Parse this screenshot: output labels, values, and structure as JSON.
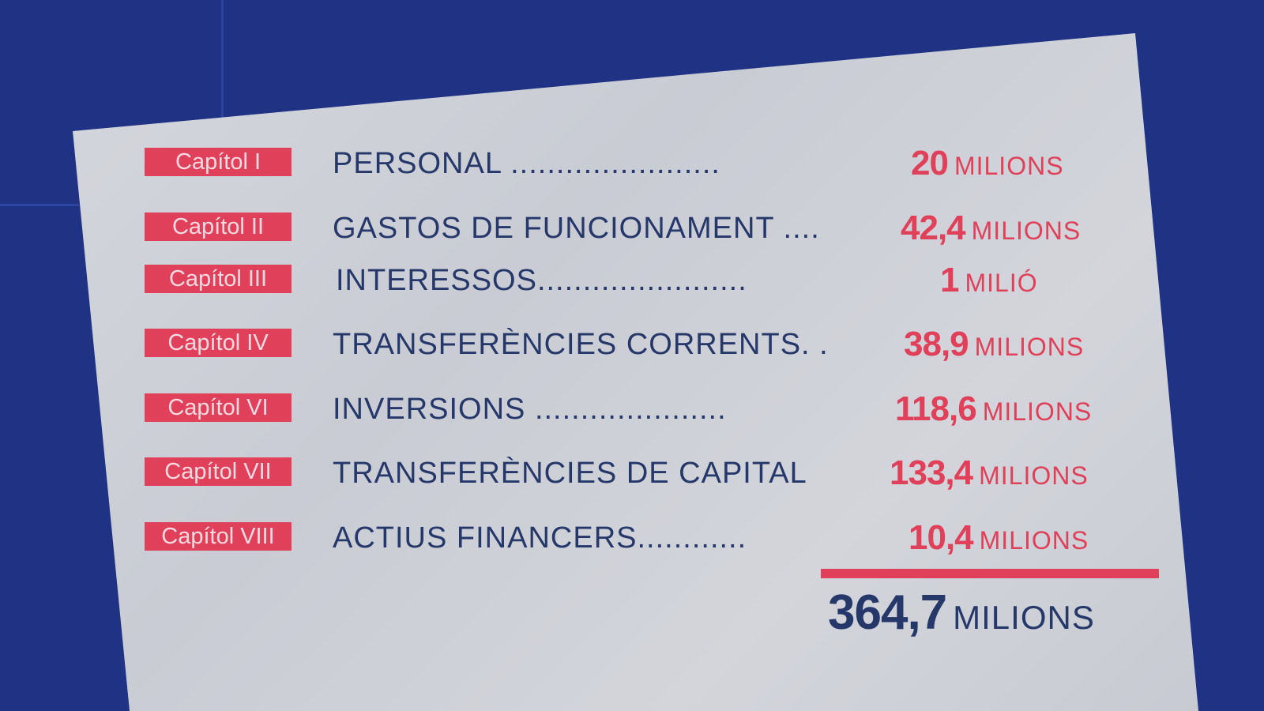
{
  "colors": {
    "background": "#1f3284",
    "accent": "#e0405a",
    "text": "#263869",
    "paper": "#cfd2d8"
  },
  "rows": [
    {
      "chapter": "Capítol I",
      "label": "PERSONAL  .......................",
      "value": "20",
      "unit": "MILIONS"
    },
    {
      "chapter": "Capítol II",
      "label": "GASTOS DE FUNCIONAMENT ....",
      "value": "42,4",
      "unit": "MILIONS"
    },
    {
      "chapter": "Capítol III",
      "label": "INTERESSOS.......................",
      "value": "1",
      "unit": "MILIÓ"
    },
    {
      "chapter": "Capítol IV",
      "label": "TRANSFERÈNCIES CORRENTS. .",
      "value": "38,9",
      "unit": "MILIONS"
    },
    {
      "chapter": "Capítol VI",
      "label": "INVERSIONS  .....................",
      "value": "118,6",
      "unit": "MILIONS"
    },
    {
      "chapter": "Capítol VII",
      "label": "TRANSFERÈNCIES DE CAPITAL",
      "value": "133,4",
      "unit": "MILIONS"
    },
    {
      "chapter": "Capítol VIII",
      "label": "ACTIUS FINANCERS............",
      "value": "10,4",
      "unit": "MILIONS"
    }
  ],
  "total": {
    "value": "364,7",
    "unit": "MILIONS"
  }
}
